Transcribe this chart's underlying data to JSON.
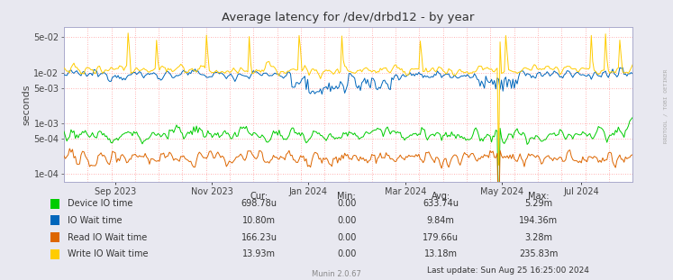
{
  "title": "Average latency for /dev/drbd12 - by year",
  "ylabel": "seconds",
  "outer_bg": "#e8e8f0",
  "plot_bg": "#ffffff",
  "grid_color": "#ff9999",
  "yticks": [
    0.0001,
    0.0005,
    0.001,
    0.005,
    0.01,
    0.05
  ],
  "ytick_labels": [
    "1e-04",
    "5e-04",
    "1e-03",
    "5e-03",
    "1e-02",
    "5e-02"
  ],
  "ylim": [
    7e-05,
    0.08
  ],
  "xticklabels": [
    "Sep 2023",
    "Nov 2023",
    "Jan 2024",
    "Mar 2024",
    "May 2024",
    "Jul 2024"
  ],
  "xtick_positions": [
    0.09,
    0.26,
    0.43,
    0.6,
    0.77,
    0.91
  ],
  "legend": [
    {
      "label": "Device IO time",
      "color": "#00cc00",
      "cur": "698.78u",
      "min": "0.00",
      "avg": "633.74u",
      "max": "5.29m"
    },
    {
      "label": "IO Wait time",
      "color": "#0066bb",
      "cur": "10.80m",
      "min": "0.00",
      "avg": "9.84m",
      "max": "194.36m"
    },
    {
      "label": "Read IO Wait time",
      "color": "#dd6600",
      "cur": "166.23u",
      "min": "0.00",
      "avg": "179.66u",
      "max": "3.28m"
    },
    {
      "label": "Write IO Wait time",
      "color": "#ffcc00",
      "cur": "13.93m",
      "min": "0.00",
      "avg": "13.18m",
      "max": "235.83m"
    }
  ],
  "last_update": "Last update: Sun Aug 25 16:25:00 2024",
  "munin_text": "Munin 2.0.67",
  "rrdtool_text": "RRDTOOL / TOBI OETIKER",
  "n_hgrid": 12,
  "n_vgrid": 24
}
